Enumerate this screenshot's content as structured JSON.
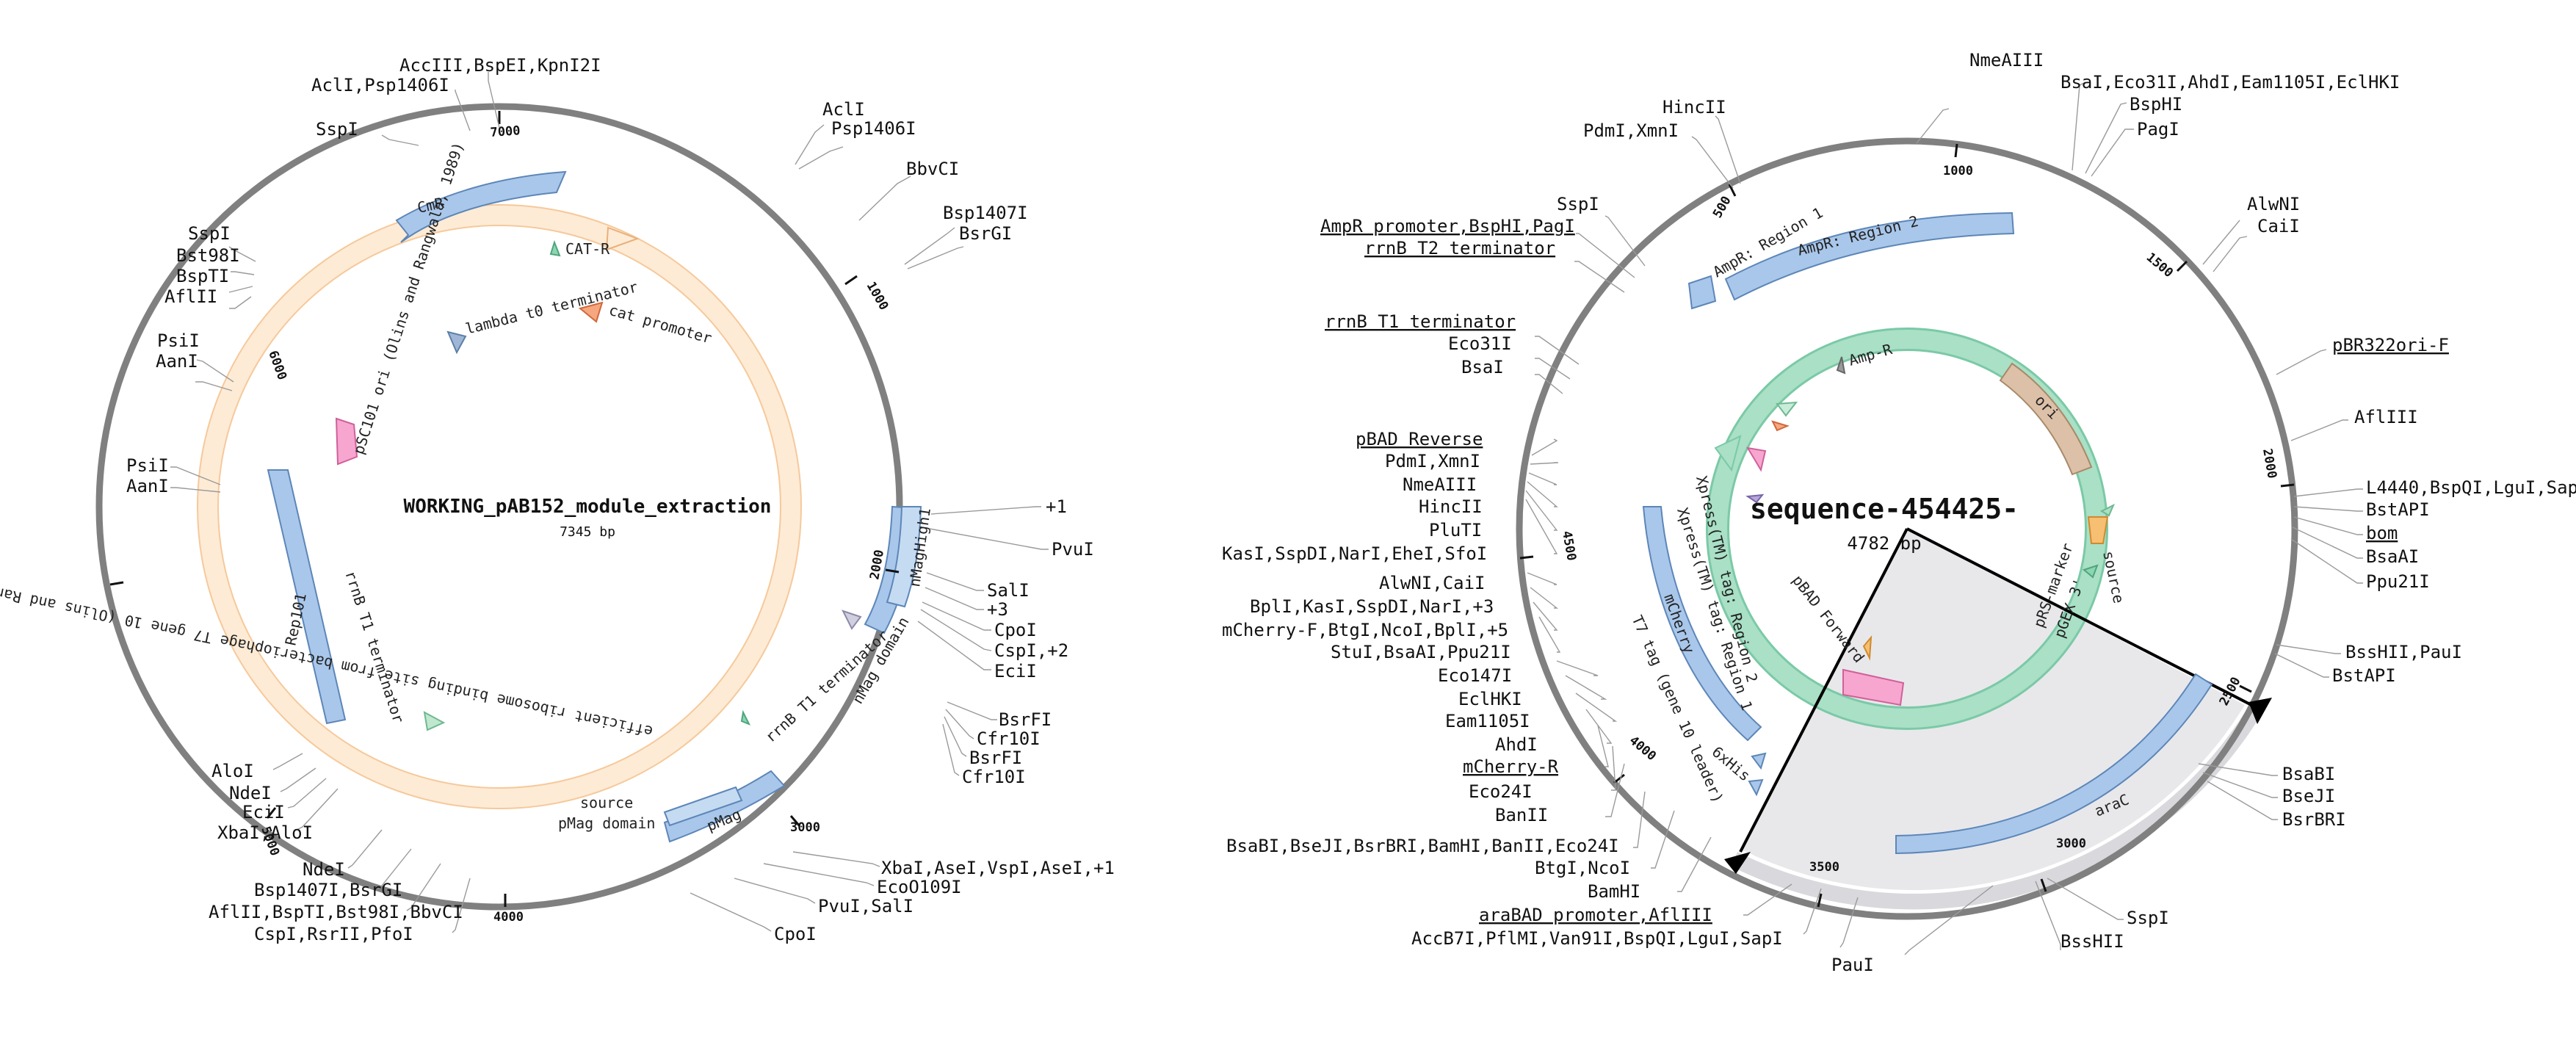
{
  "maps": [
    {
      "name": "WORKING_pAB152_module_extraction",
      "length": "7345 bp",
      "ticks": [
        "1000",
        "2000",
        "3000",
        "4000",
        "5000",
        "6000",
        "7000"
      ],
      "enzymes": [
        "AccIII,BspEI,KpnI2I",
        "AclI,Psp1406I",
        "SspI",
        "AclI",
        "Psp1406I",
        "BbvCI",
        "Bsp1407I",
        "BsrGI",
        "SspI",
        "Bst98I",
        "BspTI",
        "AflII",
        "PsiI",
        "AanI",
        "PsiI",
        "AanI",
        "+1",
        "PvuI",
        "SalI",
        "+3",
        "CpoI",
        "CspI,+2",
        "EciI",
        "BsrFI",
        "Cfr10I",
        "BsrFI",
        "Cfr10I",
        "AloI",
        "NdeI",
        "EciI",
        "XbaI,AloI",
        "NdeI",
        "Bsp1407I,BsrGI",
        "AflII,BspTI,Bst98I,BbvCI",
        "CspI,RsrII,PfoI",
        "CpoI",
        "PvuI,SalI",
        "EcoO109I",
        "XbaI,AseI,VspI,AseI,+1"
      ],
      "features": [
        "CmR",
        "CAT-R",
        "cat promoter",
        "lambda t0 terminator",
        "pSC101 ori (Olins and Rangwala, 1989)",
        "rrnB T1 terminator",
        "Rep101",
        "nMagHigh1",
        "nMag domain",
        "rrnB T1 terminator",
        "efficient ribosome binding site from bacteriophage T7 gene 10 (Olins and Rangwala, 1989)",
        "source",
        "pMag domain",
        "pMag"
      ]
    },
    {
      "name": "sequence-454425-",
      "length": "4782 bp",
      "ticks": [
        "500",
        "1000",
        "1500",
        "2000",
        "2500",
        "3000",
        "3500",
        "4000",
        "4500"
      ],
      "enzymes": [
        "NmeAIII",
        "BsaI,Eco31I,AhdI,Eam1105I,EclHKI",
        "BspHI",
        "PagI",
        "HincII",
        "PdmI,XmnI",
        "SspI",
        "AmpR promoter,BspHI,PagI",
        "rrnB T2 terminator",
        "rrnB T1 terminator",
        "Eco31I",
        "BsaI",
        "AlwNI",
        "CaiI",
        "pBR322ori-F",
        "AflIII",
        "L4440,BspQI,LguI,Sap",
        "BstAPI",
        "bom",
        "BsaAI",
        "Ppu21I",
        "BssHII,PauI",
        "BstAPI",
        "pBAD Reverse",
        "PdmI,XmnI",
        "NmeAIII",
        "HincII",
        "PluTI",
        "KasI,SspDI,NarI,EheI,SfoI",
        "AlwNI,CaiI",
        "BplI,KasI,SspDI,NarI,+3",
        "mCherry-F,BtgI,NcoI,BplI,+5",
        "StuI,BsaAI,Ppu21I",
        "Eco147I",
        "EclHKI",
        "Eam1105I",
        "AhdI",
        "mCherry-R",
        "Eco24I",
        "BanII",
        "BsaBI,BseJI,BsrBRI,BamHI,BanII,Eco24I",
        "BtgI,NcoI",
        "BamHI",
        "araBAD promoter,AflIII",
        "AccB7I,PflMI,Van91I,BspQI,LguI,SapI",
        "PauI",
        "BssHII",
        "SspI",
        "BsaBI",
        "BseJI",
        "BsrBRI"
      ],
      "features": [
        "AmpR: Region 1",
        "AmpR: Region 2",
        "Amp-R",
        "ori",
        "source",
        "pRS-marker",
        "pGEX 3'",
        "Xpress(TM) tag: Region 2",
        "Xpress(TM) tag: Region 1",
        "pBAD Forward",
        "mCherry",
        "T7 tag (gene 10 leader)",
        "6xHis",
        "araC"
      ]
    }
  ]
}
